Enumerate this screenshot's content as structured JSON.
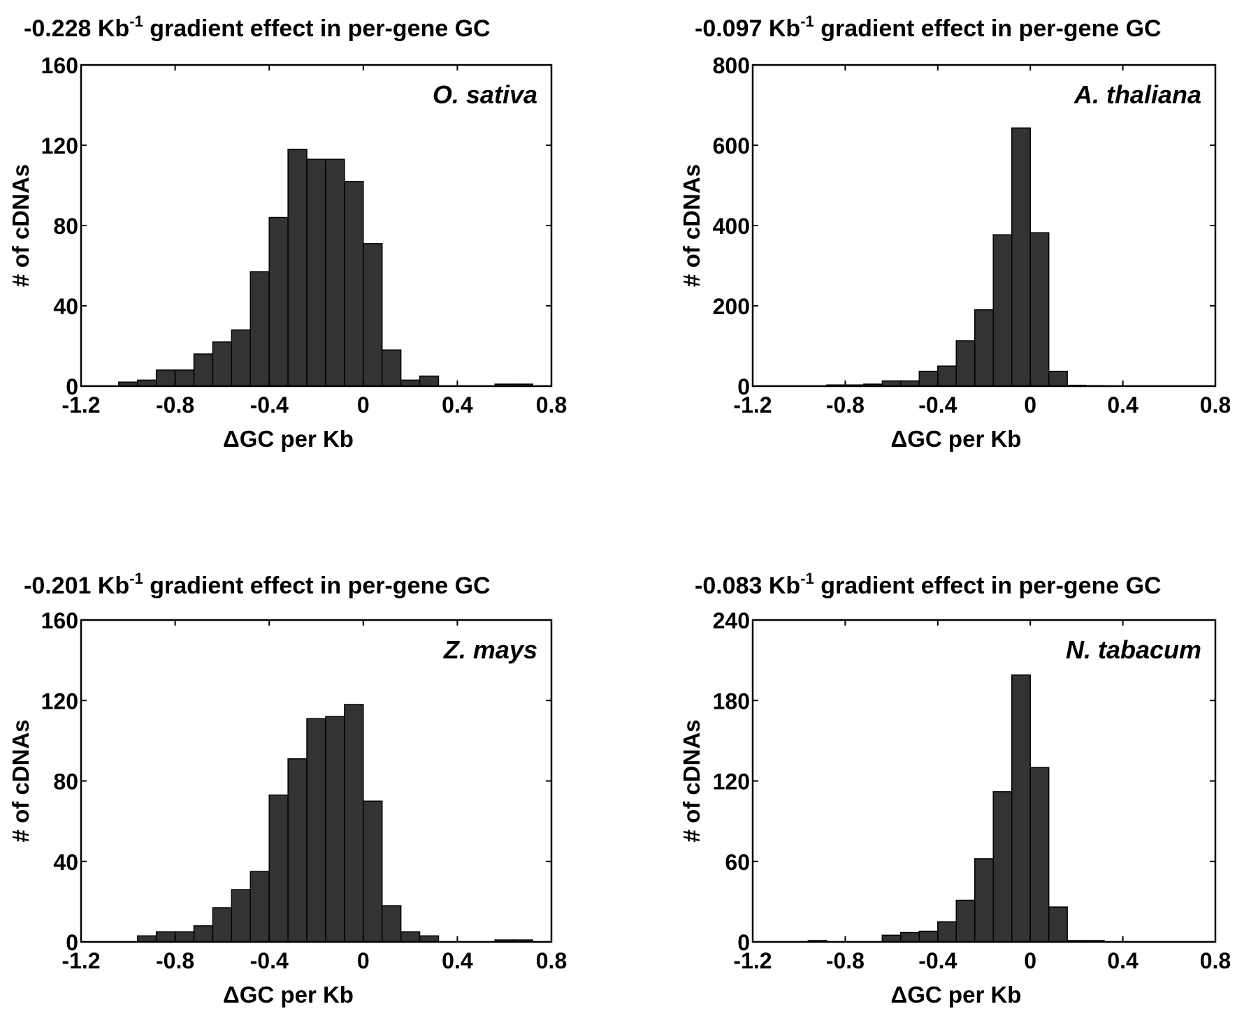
{
  "chart_data": [
    {
      "type": "bar",
      "title": {
        "prefix": "-0.228 Kb",
        "superscript": "-1",
        "suffix": " gradient effect in per-gene GC"
      },
      "annotation": "O. sativa",
      "xlabel": "ΔGC per Kb",
      "ylabel": "# of cDNAs",
      "xlim": [
        -1.2,
        0.8
      ],
      "ylim": [
        0,
        160
      ],
      "xticks": [
        "-1.2",
        "-0.8",
        "-0.4",
        "0",
        "0.4",
        "0.8"
      ],
      "yticks": [
        "0",
        "40",
        "80",
        "120",
        "160"
      ],
      "bin_width": 0.08,
      "bin_centers": [
        -1.0,
        -0.92,
        -0.84,
        -0.76,
        -0.68,
        -0.6,
        -0.52,
        -0.44,
        -0.36,
        -0.28,
        -0.2,
        -0.12,
        -0.04,
        0.04,
        0.12,
        0.2,
        0.28,
        0.36,
        0.44,
        0.52,
        0.6,
        0.68
      ],
      "values": [
        2,
        3,
        8,
        8,
        16,
        22,
        28,
        57,
        84,
        118,
        113,
        113,
        102,
        71,
        18,
        3,
        5,
        0,
        0,
        0,
        1,
        1
      ]
    },
    {
      "type": "bar",
      "title": {
        "prefix": "-0.097 Kb",
        "superscript": "-1",
        "suffix": " gradient effect in per-gene GC"
      },
      "annotation": "A. thaliana",
      "xlabel": "ΔGC per Kb",
      "ylabel": "# of cDNAs",
      "xlim": [
        -1.2,
        0.8
      ],
      "ylim": [
        0,
        800
      ],
      "xticks": [
        "-1.2",
        "-0.8",
        "-0.4",
        "0",
        "0.4",
        "0.8"
      ],
      "yticks": [
        "0",
        "200",
        "400",
        "600",
        "800"
      ],
      "bin_width": 0.08,
      "bin_centers": [
        -1.0,
        -0.92,
        -0.84,
        -0.76,
        -0.68,
        -0.6,
        -0.52,
        -0.44,
        -0.36,
        -0.28,
        -0.2,
        -0.12,
        -0.04,
        0.04,
        0.12,
        0.2,
        0.28,
        0.36,
        0.44,
        0.52,
        0.6,
        0.68
      ],
      "values": [
        0,
        0,
        3,
        3,
        5,
        13,
        13,
        37,
        50,
        113,
        190,
        377,
        643,
        382,
        37,
        2,
        1,
        0,
        0,
        0,
        0,
        0
      ]
    },
    {
      "type": "bar",
      "title": {
        "prefix": "-0.201 Kb",
        "superscript": "-1",
        "suffix": " gradient effect in per-gene GC"
      },
      "annotation": "Z. mays",
      "xlabel": "ΔGC per Kb",
      "ylabel": "# of cDNAs",
      "xlim": [
        -1.2,
        0.8
      ],
      "ylim": [
        0,
        160
      ],
      "xticks": [
        "-1.2",
        "-0.8",
        "-0.4",
        "0",
        "0.4",
        "0.8"
      ],
      "yticks": [
        "0",
        "40",
        "80",
        "120",
        "160"
      ],
      "bin_width": 0.08,
      "bin_centers": [
        -1.0,
        -0.92,
        -0.84,
        -0.76,
        -0.68,
        -0.6,
        -0.52,
        -0.44,
        -0.36,
        -0.28,
        -0.2,
        -0.12,
        -0.04,
        0.04,
        0.12,
        0.2,
        0.28,
        0.36,
        0.44,
        0.52,
        0.6,
        0.68
      ],
      "values": [
        0,
        3,
        5,
        5,
        8,
        17,
        26,
        35,
        73,
        91,
        111,
        112,
        118,
        70,
        18,
        5,
        3,
        0,
        0,
        0,
        1,
        1
      ]
    },
    {
      "type": "bar",
      "title": {
        "prefix": "-0.083 Kb",
        "superscript": "-1",
        "suffix": " gradient effect in per-gene GC"
      },
      "annotation": "N. tabacum",
      "xlabel": "ΔGC per Kb",
      "ylabel": "# of cDNAs",
      "xlim": [
        -1.2,
        0.8
      ],
      "ylim": [
        0,
        240
      ],
      "xticks": [
        "-1.2",
        "-0.8",
        "-0.4",
        "0",
        "0.4",
        "0.8"
      ],
      "yticks": [
        "0",
        "60",
        "120",
        "180",
        "240"
      ],
      "bin_width": 0.08,
      "bin_centers": [
        -1.0,
        -0.92,
        -0.84,
        -0.76,
        -0.68,
        -0.6,
        -0.52,
        -0.44,
        -0.36,
        -0.28,
        -0.2,
        -0.12,
        -0.04,
        0.04,
        0.12,
        0.2,
        0.28,
        0.36,
        0.44,
        0.52,
        0.6,
        0.68
      ],
      "values": [
        0,
        1,
        0,
        0,
        0,
        5,
        7,
        8,
        15,
        31,
        62,
        112,
        199,
        130,
        26,
        1,
        1,
        0,
        0,
        0,
        0,
        0
      ]
    }
  ],
  "colors": {
    "bar_fill": "#333333",
    "axes": "#000000",
    "background": "#ffffff"
  }
}
